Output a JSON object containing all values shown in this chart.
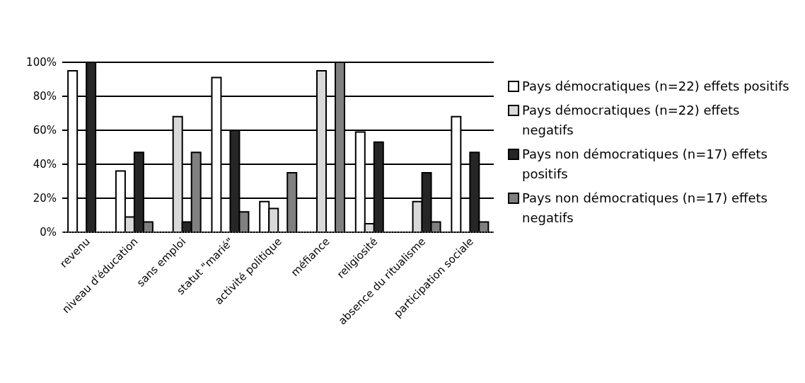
{
  "chart_data": {
    "type": "bar",
    "categories": [
      "revenu",
      "niveau d'éducation",
      "sans emploi",
      "statut \"marié\"",
      "activité politique",
      "méfiance",
      "religiosité",
      "absence du ritualisme",
      "participation sociale"
    ],
    "series": [
      {
        "name": "Pays démocratiques (n=22) effets positifs",
        "color": "#ffffff",
        "values": [
          95,
          36,
          null,
          91,
          18,
          null,
          59,
          null,
          68
        ]
      },
      {
        "name": "Pays démocratiques (n=22) effets negatifs",
        "color": "#d9d9d9",
        "values": [
          null,
          9,
          68,
          null,
          14,
          95,
          5,
          18,
          null
        ]
      },
      {
        "name": "Pays non démocratiques (n=17) effets positifs",
        "color": "#262626",
        "values": [
          100,
          47,
          6,
          60,
          null,
          null,
          53,
          35,
          47
        ]
      },
      {
        "name": "Pays non démocratiques (n=17) effets negatifs",
        "color": "#808080",
        "values": [
          null,
          6,
          47,
          12,
          35,
          100,
          null,
          6,
          6
        ]
      }
    ],
    "ylim": [
      0,
      100
    ],
    "yticks": [
      {
        "value": 0,
        "label": "0%"
      },
      {
        "value": 20,
        "label": "20%"
      },
      {
        "value": 40,
        "label": "40%"
      },
      {
        "value": 60,
        "label": "60%"
      },
      {
        "value": 80,
        "label": "80%"
      },
      {
        "value": 100,
        "label": "100%"
      }
    ],
    "grid": "y",
    "legend": "right"
  }
}
